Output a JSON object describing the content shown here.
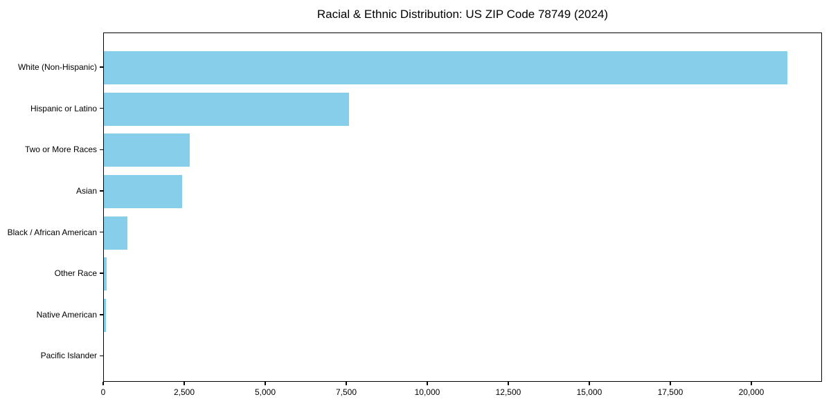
{
  "chart_data": {
    "type": "bar",
    "orientation": "horizontal",
    "title": "Racial & Ethnic Distribution: US ZIP Code 78749 (2024)",
    "categories": [
      "White (Non-Hispanic)",
      "Hispanic or Latino",
      "Two or More Races",
      "Asian",
      "Black / African American",
      "Other Race",
      "Native American",
      "Pacific Islander"
    ],
    "values": [
      21080,
      7570,
      2640,
      2410,
      720,
      75,
      70,
      0
    ],
    "xlabel": "",
    "ylabel": "",
    "xlim": [
      0,
      22180
    ],
    "xticks": [
      0,
      2500,
      5000,
      7500,
      10000,
      12500,
      15000,
      17500,
      20000
    ],
    "xtick_labels": [
      "0",
      "2,500",
      "5,000",
      "7,500",
      "10,000",
      "12,500",
      "15,000",
      "17,500",
      "20,000"
    ],
    "bar_color": "#87CEEB",
    "grid": false,
    "legend": null,
    "background_color": "#ffffff",
    "axis_color": "#000000"
  }
}
